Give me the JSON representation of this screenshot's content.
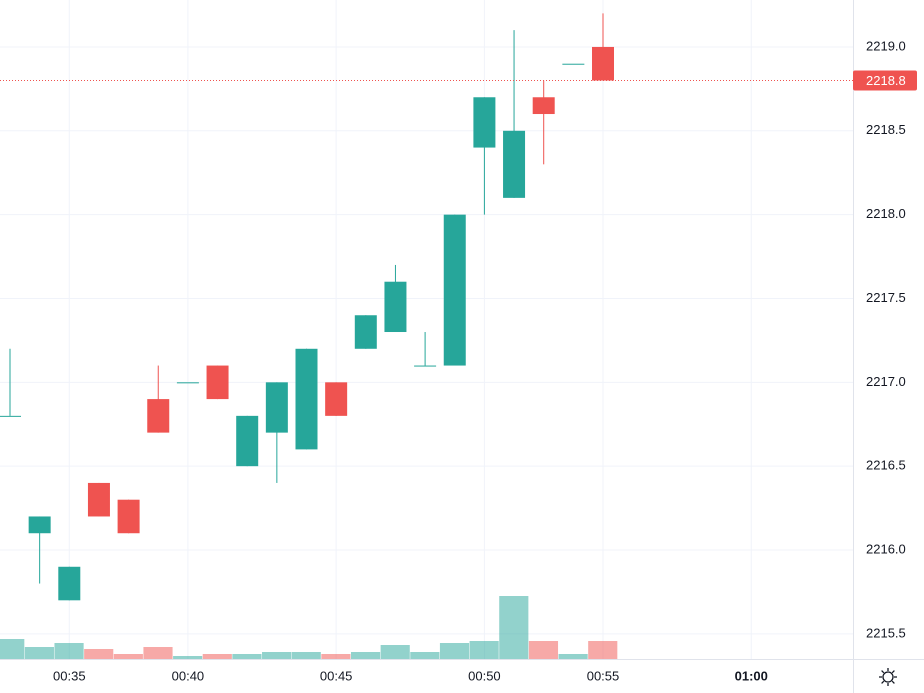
{
  "chart_data": {
    "type": "candlestick",
    "categories": [
      null,
      null,
      "00:35",
      null,
      null,
      null,
      "00:40",
      null,
      null,
      null,
      null,
      "00:45",
      null,
      null,
      null,
      null,
      "00:50",
      null,
      null,
      null,
      "00:55",
      null,
      null,
      null,
      null,
      "01:00"
    ],
    "open": [
      2216.8,
      2216.1,
      2215.7,
      2216.4,
      2216.3,
      2216.9,
      2217.0,
      2217.1,
      2216.5,
      2216.7,
      2216.6,
      2217.0,
      2217.2,
      2217.3,
      2217.1,
      2217.1,
      2218.4,
      2218.1,
      2218.7,
      2218.9,
      2219.0,
      null,
      null,
      null,
      null,
      null
    ],
    "high": [
      2217.2,
      2216.2,
      2215.9,
      2216.4,
      2216.3,
      2217.1,
      2217.0,
      2217.1,
      2216.8,
      2217.0,
      2217.2,
      2217.0,
      2217.4,
      2217.7,
      2217.3,
      2218.0,
      2218.7,
      2219.1,
      2218.8,
      2218.9,
      2219.2,
      null,
      null,
      null,
      null,
      null
    ],
    "low": [
      2216.8,
      2215.8,
      2215.7,
      2216.2,
      2216.1,
      2216.7,
      2217.0,
      2216.9,
      2216.5,
      2216.4,
      2216.6,
      2216.8,
      2217.2,
      2217.3,
      2217.1,
      2217.1,
      2218.0,
      2218.1,
      2218.3,
      2218.9,
      2218.8,
      null,
      null,
      null,
      null,
      null
    ],
    "close": [
      2216.8,
      2216.2,
      2215.9,
      2216.2,
      2216.1,
      2216.7,
      2217.0,
      2216.9,
      2216.8,
      2217.0,
      2217.2,
      2216.8,
      2217.4,
      2217.6,
      2217.1,
      2218.0,
      2218.7,
      2218.5,
      2218.6,
      2218.9,
      2218.8,
      null,
      null,
      null,
      null,
      null
    ],
    "volume": [
      20,
      12,
      16,
      10,
      5,
      12,
      3,
      5,
      5,
      7,
      7,
      5,
      7,
      14,
      7,
      16,
      18,
      63,
      18,
      5,
      18,
      null,
      null,
      null,
      null,
      null
    ],
    "up_color": "#26a69a",
    "down_color": "#ef5350",
    "last_price": 2218.8,
    "ylim": [
      2215.35,
      2219.28
    ],
    "yticks": [
      2215.5,
      {
        "value": 2216,
        "label": "2216.0"
      },
      2216.5,
      {
        "value": 2217,
        "label": "2217.0"
      },
      2217.5,
      {
        "value": 2218,
        "label": "2218.0"
      },
      2218.5,
      {
        "value": 2219,
        "label": "2219.0"
      }
    ],
    "grid": true
  }
}
